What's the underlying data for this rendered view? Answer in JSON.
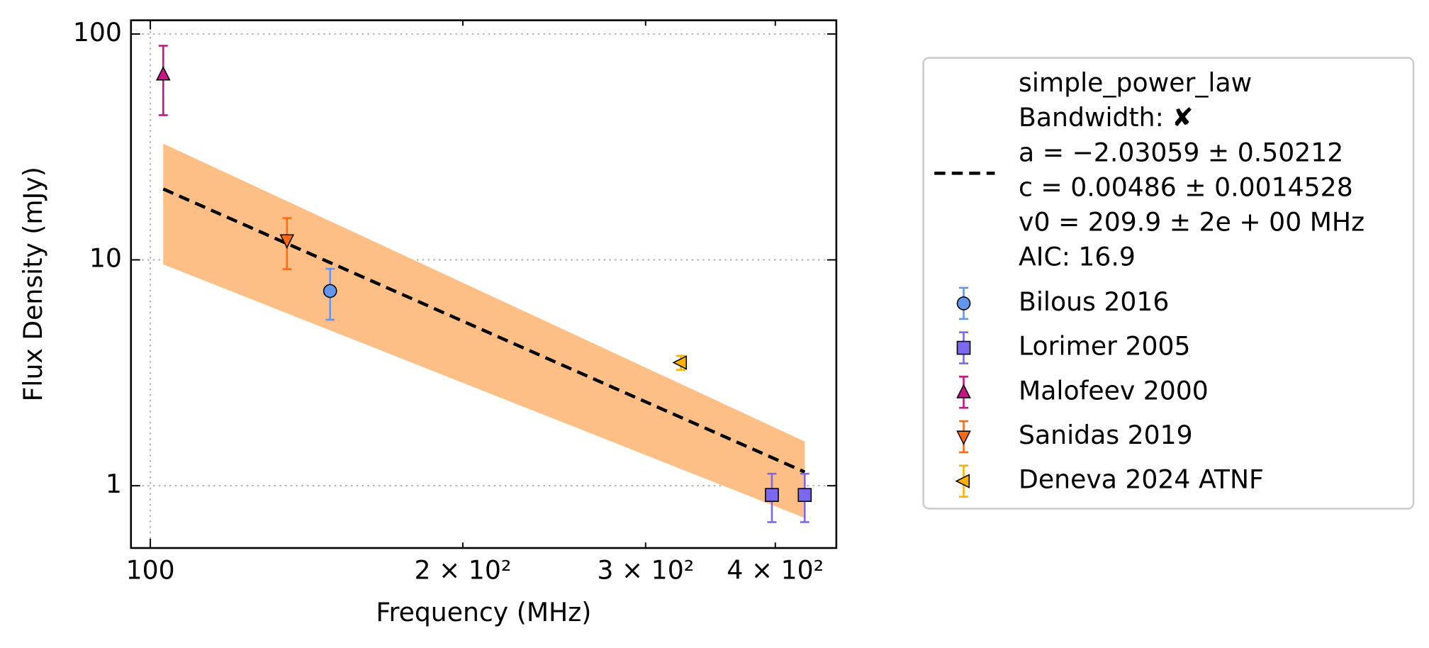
{
  "chart_data": {
    "type": "scatter",
    "xlabel": "Frequency (MHz)",
    "ylabel": "Flux Density (mJy)",
    "xscale": "log",
    "yscale": "log",
    "xlim": [
      95.8,
      458
    ],
    "ylim": [
      0.53,
      115
    ],
    "xticks": [
      100,
      {
        "value": 200,
        "label": "2 × 10²"
      },
      {
        "value": 300,
        "label": "3 × 10²"
      },
      {
        "value": 400,
        "label": "4 × 10²"
      }
    ],
    "yticks": [
      1,
      10,
      100
    ],
    "grid": true,
    "fit": {
      "color": "#000000",
      "band_color": "#fdbf85",
      "label_lines": [
        "simple_power_law",
        "Bandwidth: ✘",
        "a = −2.03059 ± 0.50212",
        "c = 0.00486 ± 0.0014528",
        "v0 = 209.9 ± 2e + 00 MHz",
        "AIC: 16.9"
      ],
      "x": [
        102.9,
        427
      ],
      "values": [
        20.6,
        1.15
      ],
      "band_upper": [
        32.7,
        1.57
      ],
      "band_lower": [
        9.55,
        0.72
      ]
    },
    "series": [
      {
        "name": "Bilous 2016",
        "color": "#6495ed",
        "marker": "circle",
        "x": [
          149
        ],
        "values": [
          7.28
        ],
        "errors": [
          1.85
        ]
      },
      {
        "name": "Lorimer 2005",
        "color": "#7b68ee",
        "marker": "square",
        "x": [
          397,
          427
        ],
        "values": [
          0.91,
          0.91
        ],
        "errors": [
          0.22,
          0.22
        ]
      },
      {
        "name": "Malofeev 2000",
        "color": "#c71585",
        "marker": "triangle-up",
        "x": [
          102.9
        ],
        "values": [
          66.2
        ],
        "errors": [
          22.5
        ]
      },
      {
        "name": "Sanidas 2019",
        "color": "#ff6a14",
        "marker": "triangle-down",
        "x": [
          135.4
        ],
        "values": [
          12.2
        ],
        "errors": [
          3.1
        ]
      },
      {
        "name": "Deneva 2024 ATNF",
        "color": "#ffb000",
        "marker": "triangle-left",
        "x": [
          324.4
        ],
        "values": [
          3.51
        ],
        "errors": [
          0.25
        ]
      }
    ]
  }
}
